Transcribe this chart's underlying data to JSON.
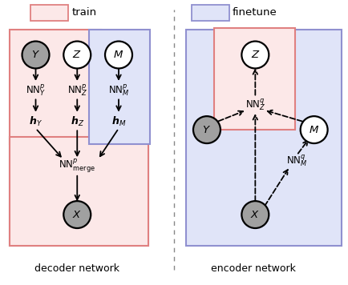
{
  "fig_width": 4.34,
  "fig_height": 3.56,
  "dpi": 100,
  "train_box_color": "#fce8e8",
  "train_border_color": "#e08080",
  "finetune_box_color": "#e0e4f8",
  "finetune_border_color": "#9090d0",
  "gray_node_color": "#a0a0a0",
  "white_node_color": "#ffffff",
  "node_edge_color": "#000000",
  "legend_train": "train",
  "legend_finetune": "finetune"
}
